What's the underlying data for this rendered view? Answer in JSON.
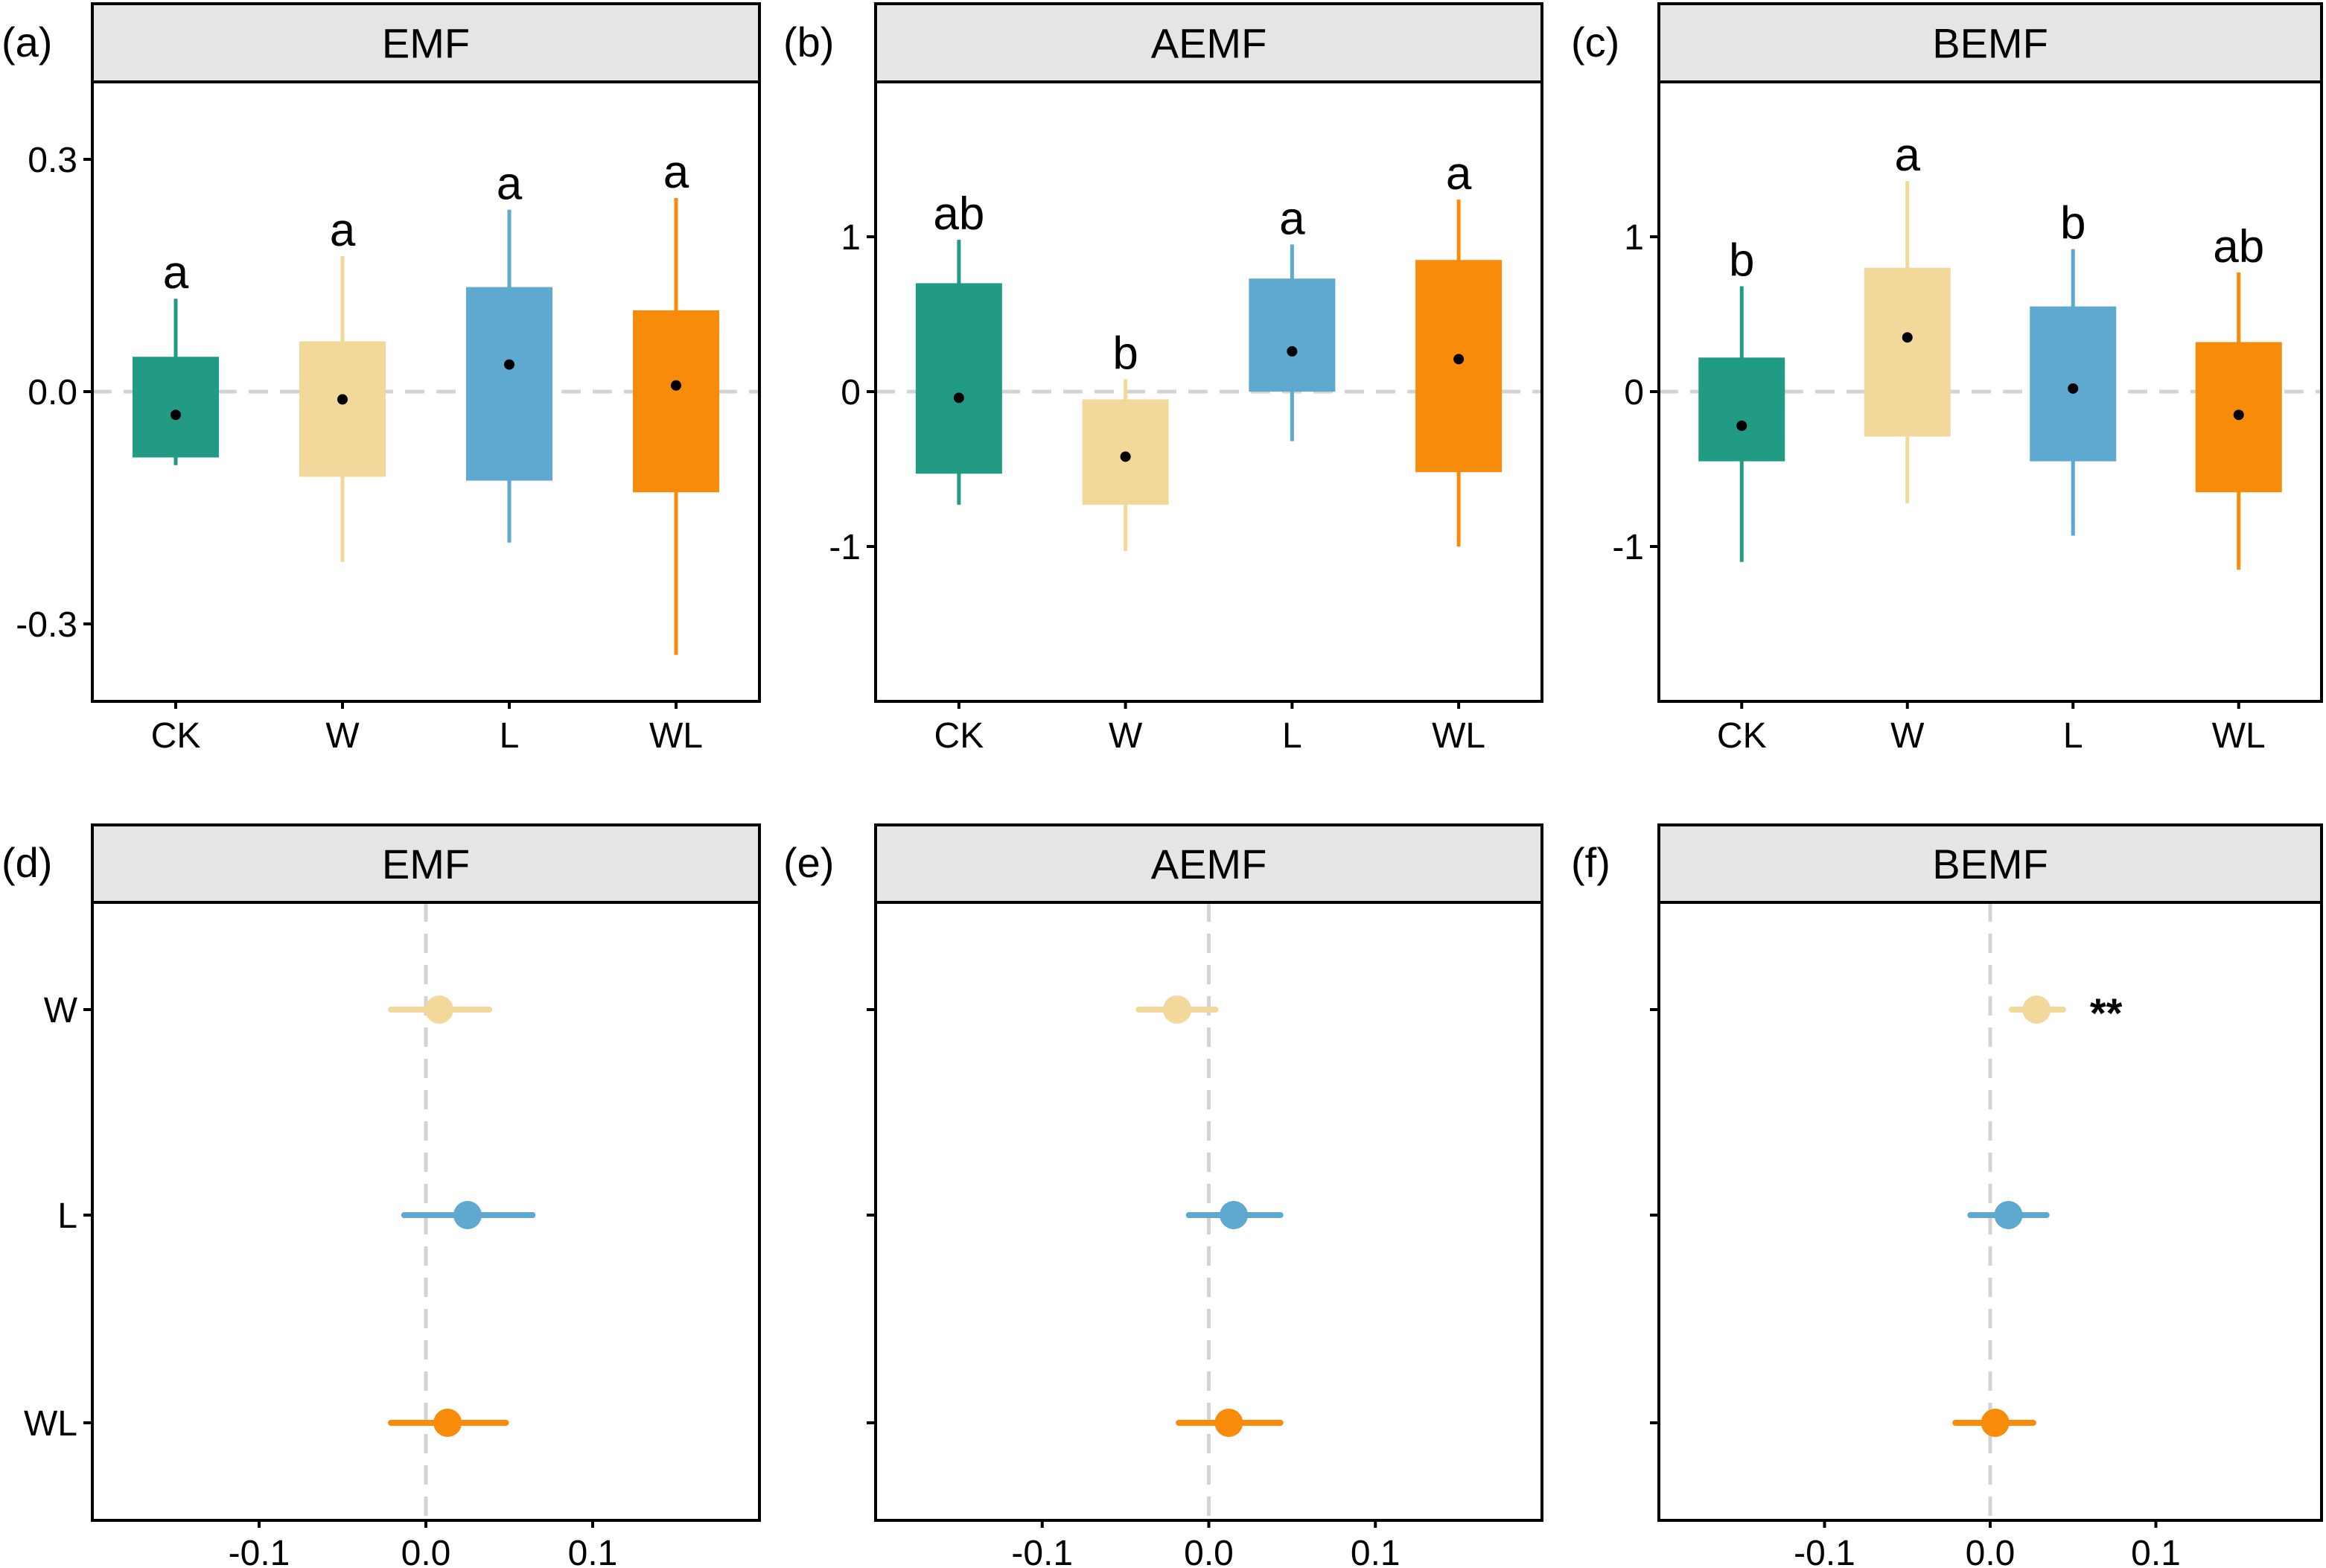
{
  "chart_data": [
    {
      "panel": "(a)",
      "title": "EMF",
      "type": "box",
      "categories": [
        "CK",
        "W",
        "L",
        "WL"
      ],
      "colors": [
        "#229b85",
        "#f2d99b",
        "#5fa9d0",
        "#f88c0a"
      ],
      "ylim": [
        -0.4,
        0.4
      ],
      "yticks": [
        -0.3,
        0.0,
        0.3
      ],
      "ytick_labels": [
        "-0.3",
        "0.0",
        "0.3"
      ],
      "reference_line": 0,
      "boxes": [
        {
          "category": "CK",
          "whisker_low": -0.095,
          "q1": -0.085,
          "q3": 0.045,
          "whisker_high": 0.12,
          "mean": -0.03,
          "letter": "a"
        },
        {
          "category": "W",
          "whisker_low": -0.22,
          "q1": -0.11,
          "q3": 0.065,
          "whisker_high": 0.175,
          "mean": -0.01,
          "letter": "a"
        },
        {
          "category": "L",
          "whisker_low": -0.195,
          "q1": -0.115,
          "q3": 0.135,
          "whisker_high": 0.235,
          "mean": 0.035,
          "letter": "a"
        },
        {
          "category": "WL",
          "whisker_low": -0.34,
          "q1": -0.13,
          "q3": 0.105,
          "whisker_high": 0.25,
          "mean": 0.008,
          "letter": "a"
        }
      ]
    },
    {
      "panel": "(b)",
      "title": "AEMF",
      "type": "box",
      "categories": [
        "CK",
        "W",
        "L",
        "WL"
      ],
      "colors": [
        "#229b85",
        "#f2d99b",
        "#5fa9d0",
        "#f88c0a"
      ],
      "ylim": [
        -2,
        2
      ],
      "yticks": [
        -1,
        0,
        1
      ],
      "ytick_labels": [
        "-1",
        "0",
        "1"
      ],
      "reference_line": 0,
      "boxes": [
        {
          "category": "CK",
          "whisker_low": -0.73,
          "q1": -0.53,
          "q3": 0.7,
          "whisker_high": 0.98,
          "mean": -0.04,
          "letter": "ab"
        },
        {
          "category": "W",
          "whisker_low": -1.03,
          "q1": -0.73,
          "q3": -0.05,
          "whisker_high": 0.08,
          "mean": -0.42,
          "letter": "b"
        },
        {
          "category": "L",
          "whisker_low": -0.32,
          "q1": 0.0,
          "q3": 0.73,
          "whisker_high": 0.95,
          "mean": 0.26,
          "letter": "a"
        },
        {
          "category": "WL",
          "whisker_low": -1.0,
          "q1": -0.52,
          "q3": 0.85,
          "whisker_high": 1.24,
          "mean": 0.21,
          "letter": "a"
        }
      ]
    },
    {
      "panel": "(c)",
      "title": "BEMF",
      "type": "box",
      "categories": [
        "CK",
        "W",
        "L",
        "WL"
      ],
      "colors": [
        "#229b85",
        "#f2d99b",
        "#5fa9d0",
        "#f88c0a"
      ],
      "ylim": [
        -2,
        2
      ],
      "yticks": [
        -1,
        0,
        1
      ],
      "ytick_labels": [
        "-1",
        "0",
        "1"
      ],
      "reference_line": 0,
      "boxes": [
        {
          "category": "CK",
          "whisker_low": -1.1,
          "q1": -0.45,
          "q3": 0.22,
          "whisker_high": 0.68,
          "mean": -0.22,
          "letter": "b"
        },
        {
          "category": "W",
          "whisker_low": -0.72,
          "q1": -0.29,
          "q3": 0.8,
          "whisker_high": 1.36,
          "mean": 0.35,
          "letter": "a"
        },
        {
          "category": "L",
          "whisker_low": -0.93,
          "q1": -0.45,
          "q3": 0.55,
          "whisker_high": 0.92,
          "mean": 0.02,
          "letter": "b"
        },
        {
          "category": "WL",
          "whisker_low": -1.15,
          "q1": -0.65,
          "q3": 0.32,
          "whisker_high": 0.77,
          "mean": -0.15,
          "letter": "ab"
        }
      ]
    },
    {
      "panel": "(d)",
      "title": "EMF",
      "type": "forest",
      "categories": [
        "W",
        "L",
        "WL"
      ],
      "show_category_labels": true,
      "colors": [
        "#f2d99b",
        "#5fa9d0",
        "#f88c0a"
      ],
      "xlim": [
        -0.2,
        0.2
      ],
      "xticks": [
        -0.1,
        0.0,
        0.1
      ],
      "xtick_labels": [
        "-0.1",
        "0.0",
        "0.1"
      ],
      "reference_line": 0,
      "points": [
        {
          "category": "W",
          "estimate": 0.008,
          "ci_low": -0.021,
          "ci_high": 0.038,
          "sig": ""
        },
        {
          "category": "L",
          "estimate": 0.025,
          "ci_low": -0.013,
          "ci_high": 0.064,
          "sig": ""
        },
        {
          "category": "WL",
          "estimate": 0.013,
          "ci_low": -0.021,
          "ci_high": 0.048,
          "sig": ""
        }
      ]
    },
    {
      "panel": "(e)",
      "title": "AEMF",
      "type": "forest",
      "categories": [
        "W",
        "L",
        "WL"
      ],
      "show_category_labels": false,
      "colors": [
        "#f2d99b",
        "#5fa9d0",
        "#f88c0a"
      ],
      "xlim": [
        -0.2,
        0.2
      ],
      "xticks": [
        -0.1,
        0.0,
        0.1
      ],
      "xtick_labels": [
        "-0.1",
        "0.0",
        "0.1"
      ],
      "reference_line": 0,
      "points": [
        {
          "category": "W",
          "estimate": -0.019,
          "ci_low": -0.042,
          "ci_high": 0.004,
          "sig": ""
        },
        {
          "category": "L",
          "estimate": 0.015,
          "ci_low": -0.012,
          "ci_high": 0.043,
          "sig": ""
        },
        {
          "category": "WL",
          "estimate": 0.012,
          "ci_low": -0.018,
          "ci_high": 0.043,
          "sig": ""
        }
      ]
    },
    {
      "panel": "(f)",
      "title": "BEMF",
      "type": "forest",
      "categories": [
        "W",
        "L",
        "WL"
      ],
      "show_category_labels": false,
      "colors": [
        "#f2d99b",
        "#5fa9d0",
        "#f88c0a"
      ],
      "xlim": [
        -0.2,
        0.2
      ],
      "xticks": [
        -0.1,
        0.0,
        0.1
      ],
      "xtick_labels": [
        "-0.1",
        "0.0",
        "0.1"
      ],
      "reference_line": 0,
      "points": [
        {
          "category": "W",
          "estimate": 0.028,
          "ci_low": 0.013,
          "ci_high": 0.044,
          "sig": "**"
        },
        {
          "category": "L",
          "estimate": 0.011,
          "ci_low": -0.012,
          "ci_high": 0.034,
          "sig": ""
        },
        {
          "category": "WL",
          "estimate": 0.003,
          "ci_low": -0.021,
          "ci_high": 0.026,
          "sig": ""
        }
      ]
    }
  ]
}
